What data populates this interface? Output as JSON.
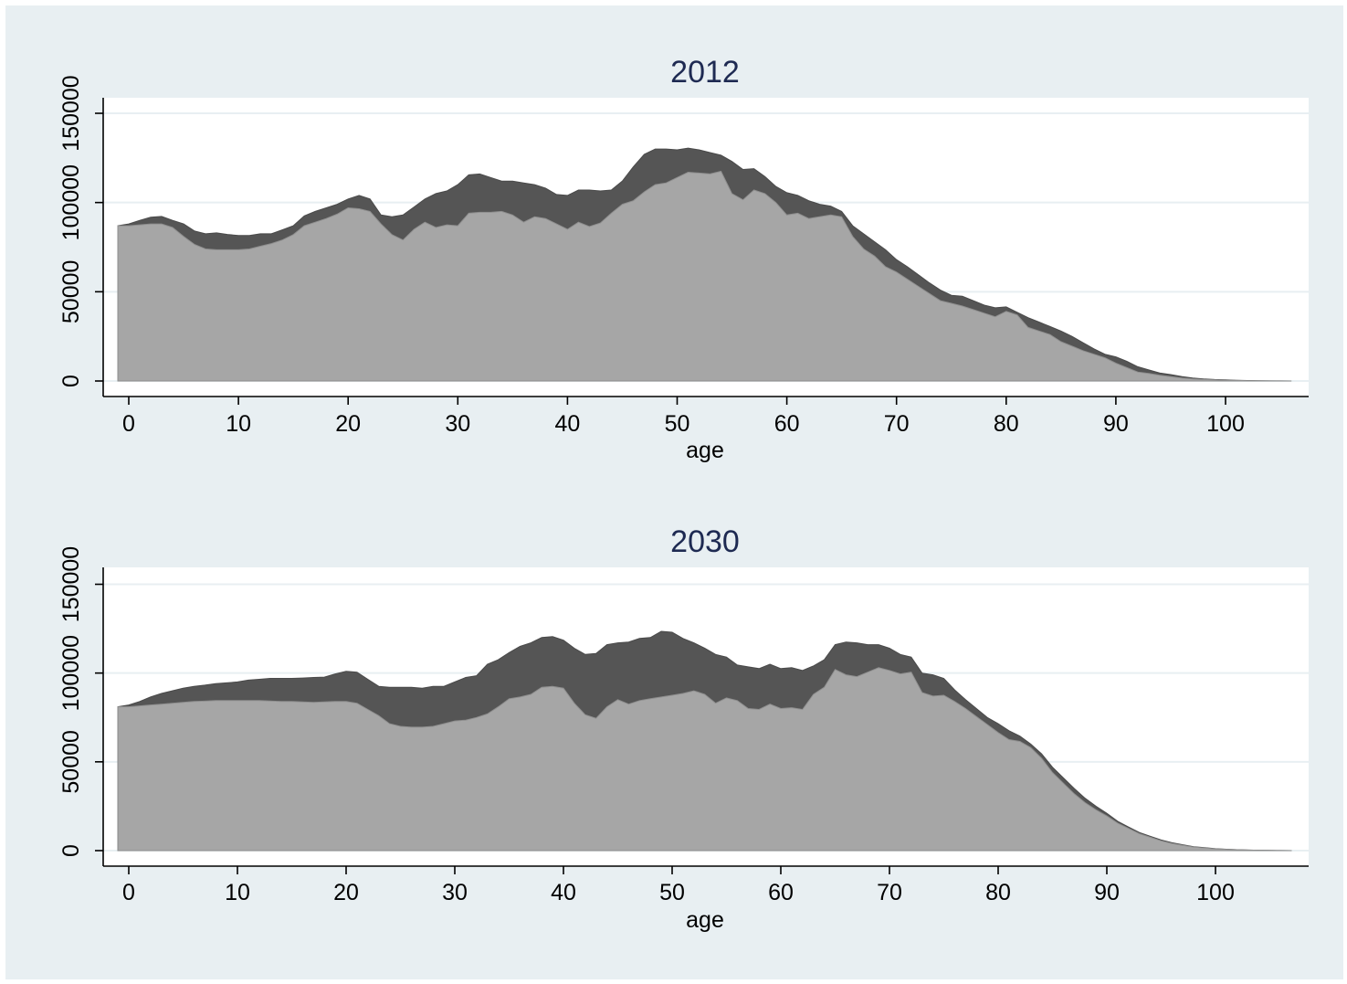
{
  "chart_data": [
    {
      "type": "area",
      "title": "2012",
      "xlabel": "age",
      "ylabel": "",
      "xlim": [
        -1,
        106
      ],
      "ylim": [
        0,
        150000
      ],
      "xticks": [
        0,
        10,
        20,
        30,
        40,
        50,
        60,
        70,
        80,
        90,
        100
      ],
      "yticks": [
        0,
        50000,
        100000,
        150000
      ],
      "grid": true,
      "legend": "none",
      "stacked": true,
      "colors": [
        "#a6a6a6",
        "#555555"
      ],
      "series": [
        {
          "x": [
            -1,
            0,
            1,
            2,
            3,
            4,
            5,
            6,
            7,
            8,
            9,
            10,
            11,
            12,
            13,
            14,
            15,
            16,
            17,
            18,
            19,
            20,
            21,
            22,
            23,
            24,
            25,
            26,
            27,
            28,
            29,
            30,
            31,
            32,
            33,
            34,
            35,
            36,
            37,
            38,
            39,
            40,
            41,
            42,
            43,
            44,
            45,
            46,
            47,
            48,
            49,
            50,
            51,
            52,
            53,
            54,
            55,
            56,
            57,
            58,
            59,
            60,
            61,
            62,
            63,
            64,
            65,
            66,
            67,
            68,
            69,
            70,
            71,
            72,
            73,
            74,
            75,
            76,
            77,
            78,
            79,
            80,
            81,
            82,
            83,
            84,
            85,
            86,
            87,
            88,
            89,
            90,
            91,
            92,
            93,
            94,
            95,
            96,
            97,
            98,
            99,
            100,
            101,
            102,
            103,
            104,
            105,
            106
          ],
          "values": [
            87000,
            87000,
            87500,
            88000,
            88000,
            86000,
            81000,
            76500,
            74000,
            73500,
            73500,
            73500,
            74000,
            75500,
            77000,
            79000,
            82000,
            87000,
            89000,
            91000,
            93500,
            97000,
            96500,
            95000,
            88000,
            82000,
            79000,
            85000,
            89000,
            86000,
            87500,
            87000,
            94000,
            94500,
            94500,
            95000,
            93000,
            89000,
            92000,
            91000,
            88000,
            85000,
            89000,
            86500,
            88500,
            94000,
            99000,
            101000,
            106000,
            110000,
            111000,
            114000,
            117000,
            116500,
            116000,
            117500,
            105000,
            101500,
            107000,
            105000,
            100000,
            93000,
            94000,
            91000,
            92000,
            93000,
            92000,
            81000,
            74000,
            70000,
            64000,
            61000,
            57000,
            53000,
            49000,
            45000,
            43500,
            42000,
            40000,
            38000,
            36000,
            39000,
            37000,
            30000,
            28000,
            26000,
            22000,
            19500,
            17000,
            15000,
            13000,
            10000,
            7500,
            5000,
            4200,
            3200,
            2400,
            1700,
            1200,
            800,
            600,
            400,
            300,
            200,
            100,
            50,
            20,
            10
          ]
        },
        {
          "x": [
            -1,
            0,
            1,
            2,
            3,
            4,
            5,
            6,
            7,
            8,
            9,
            10,
            11,
            12,
            13,
            14,
            15,
            16,
            17,
            18,
            19,
            20,
            21,
            22,
            23,
            24,
            25,
            26,
            27,
            28,
            29,
            30,
            31,
            32,
            33,
            34,
            35,
            36,
            37,
            38,
            39,
            40,
            41,
            42,
            43,
            44,
            45,
            46,
            47,
            48,
            49,
            50,
            51,
            52,
            53,
            54,
            55,
            56,
            57,
            58,
            59,
            60,
            61,
            62,
            63,
            64,
            65,
            66,
            67,
            68,
            69,
            70,
            71,
            72,
            73,
            74,
            75,
            76,
            77,
            78,
            79,
            80,
            81,
            82,
            83,
            84,
            85,
            86,
            87,
            88,
            89,
            90,
            91,
            92,
            93,
            94,
            95,
            96,
            97,
            98,
            99,
            100,
            101,
            102,
            103,
            104,
            105,
            106
          ],
          "values": [
            0,
            1000,
            2500,
            3800,
            4200,
            4000,
            7000,
            7500,
            8500,
            9500,
            8600,
            8000,
            7500,
            7000,
            5500,
            5700,
            5000,
            5500,
            6000,
            6000,
            5500,
            5000,
            7500,
            7000,
            5000,
            10000,
            14000,
            12500,
            13000,
            19000,
            19000,
            23000,
            21500,
            21500,
            19500,
            17000,
            19000,
            22000,
            18000,
            17000,
            16500,
            19000,
            18000,
            20500,
            18000,
            13000,
            13000,
            19000,
            21000,
            20000,
            19000,
            15500,
            13500,
            13000,
            12000,
            9000,
            18000,
            17000,
            12000,
            9500,
            9000,
            12500,
            10000,
            10000,
            7000,
            5000,
            3000,
            6000,
            8500,
            8000,
            9500,
            7000,
            7000,
            6500,
            6000,
            6000,
            4500,
            5500,
            5000,
            4500,
            5000,
            2500,
            1500,
            5500,
            5000,
            4500,
            6000,
            5500,
            4500,
            3000,
            2000,
            3500,
            3500,
            3000,
            2000,
            1300,
            1200,
            800,
            500,
            400,
            200,
            200,
            100,
            80,
            50,
            20,
            10,
            5
          ]
        }
      ]
    },
    {
      "type": "area",
      "title": "2030",
      "xlabel": "age",
      "ylabel": "",
      "xlim": [
        -1,
        107
      ],
      "ylim": [
        0,
        150000
      ],
      "xticks": [
        0,
        10,
        20,
        30,
        40,
        50,
        60,
        70,
        80,
        90,
        100
      ],
      "yticks": [
        0,
        50000,
        100000,
        150000
      ],
      "grid": true,
      "legend": "none",
      "stacked": true,
      "colors": [
        "#a6a6a6",
        "#555555"
      ],
      "series": [
        {
          "x": [
            -1,
            0,
            1,
            2,
            3,
            4,
            5,
            6,
            7,
            8,
            9,
            10,
            11,
            12,
            13,
            14,
            15,
            16,
            17,
            18,
            19,
            20,
            21,
            22,
            23,
            24,
            25,
            26,
            27,
            28,
            29,
            30,
            31,
            32,
            33,
            34,
            35,
            36,
            37,
            38,
            39,
            40,
            41,
            42,
            43,
            44,
            45,
            46,
            47,
            48,
            49,
            50,
            51,
            52,
            53,
            54,
            55,
            56,
            57,
            58,
            59,
            60,
            61,
            62,
            63,
            64,
            65,
            66,
            67,
            68,
            69,
            70,
            71,
            72,
            73,
            74,
            75,
            76,
            77,
            78,
            79,
            80,
            81,
            82,
            83,
            84,
            85,
            86,
            87,
            88,
            89,
            90,
            91,
            92,
            93,
            94,
            95,
            96,
            97,
            98,
            99,
            100,
            101,
            102,
            103,
            104,
            105,
            106,
            107
          ],
          "values": [
            81000,
            81000,
            81500,
            82000,
            82500,
            83000,
            83500,
            84000,
            84200,
            84500,
            84500,
            84500,
            84500,
            84500,
            84300,
            84000,
            84000,
            83700,
            83500,
            83700,
            84000,
            84000,
            83000,
            79500,
            76000,
            71500,
            70000,
            69500,
            69500,
            70000,
            71500,
            73000,
            73500,
            75000,
            77000,
            81000,
            85500,
            86500,
            88000,
            92000,
            92500,
            91500,
            83000,
            76500,
            74500,
            81000,
            85000,
            82500,
            84500,
            85500,
            86500,
            87500,
            88500,
            90000,
            88000,
            83000,
            86000,
            84500,
            80000,
            79500,
            82500,
            80000,
            80500,
            79500,
            88000,
            92000,
            102000,
            99000,
            98000,
            100500,
            103000,
            101500,
            99500,
            100500,
            89000,
            87000,
            87500,
            84000,
            80000,
            75500,
            71000,
            66500,
            62500,
            61500,
            58000,
            52000,
            44000,
            38000,
            32000,
            27000,
            23000,
            19500,
            15500,
            12500,
            9500,
            7500,
            5500,
            4000,
            3000,
            2000,
            1500,
            1000,
            700,
            500,
            300,
            200,
            100,
            50,
            0
          ]
        },
        {
          "x": [
            -1,
            0,
            1,
            2,
            3,
            4,
            5,
            6,
            7,
            8,
            9,
            10,
            11,
            12,
            13,
            14,
            15,
            16,
            17,
            18,
            19,
            20,
            21,
            22,
            23,
            24,
            25,
            26,
            27,
            28,
            29,
            30,
            31,
            32,
            33,
            34,
            35,
            36,
            37,
            38,
            39,
            40,
            41,
            42,
            43,
            44,
            45,
            46,
            47,
            48,
            49,
            50,
            51,
            52,
            53,
            54,
            55,
            56,
            57,
            58,
            59,
            60,
            61,
            62,
            63,
            64,
            65,
            66,
            67,
            68,
            69,
            70,
            71,
            72,
            73,
            74,
            75,
            76,
            77,
            78,
            79,
            80,
            81,
            82,
            83,
            84,
            85,
            86,
            87,
            88,
            89,
            90,
            91,
            92,
            93,
            94,
            95,
            96,
            97,
            98,
            99,
            100,
            101,
            102,
            103,
            104,
            105,
            106,
            107
          ],
          "values": [
            0,
            1000,
            2500,
            4500,
            6000,
            7000,
            8000,
            8500,
            9000,
            9500,
            10000,
            10500,
            11500,
            12000,
            12700,
            13000,
            13000,
            13500,
            14000,
            14000,
            15500,
            17000,
            17500,
            17000,
            16500,
            20500,
            22000,
            22500,
            22000,
            22500,
            21000,
            22000,
            24000,
            23500,
            28000,
            26500,
            26000,
            28500,
            29000,
            28000,
            28000,
            27000,
            31000,
            34000,
            36500,
            35000,
            32000,
            35000,
            35000,
            34500,
            37000,
            35500,
            31000,
            27000,
            26000,
            27500,
            23000,
            20000,
            23500,
            23000,
            22500,
            22500,
            22500,
            22000,
            16000,
            15500,
            14000,
            18500,
            19000,
            15500,
            13000,
            12500,
            11000,
            8500,
            11000,
            12000,
            9500,
            6500,
            5000,
            4500,
            4000,
            5000,
            5000,
            3000,
            2000,
            2500,
            3000,
            3000,
            3000,
            2500,
            2000,
            1500,
            1000,
            800,
            700,
            600,
            500,
            400,
            300,
            200,
            150,
            100,
            50,
            30,
            20,
            10,
            5,
            5,
            0
          ]
        }
      ]
    }
  ]
}
